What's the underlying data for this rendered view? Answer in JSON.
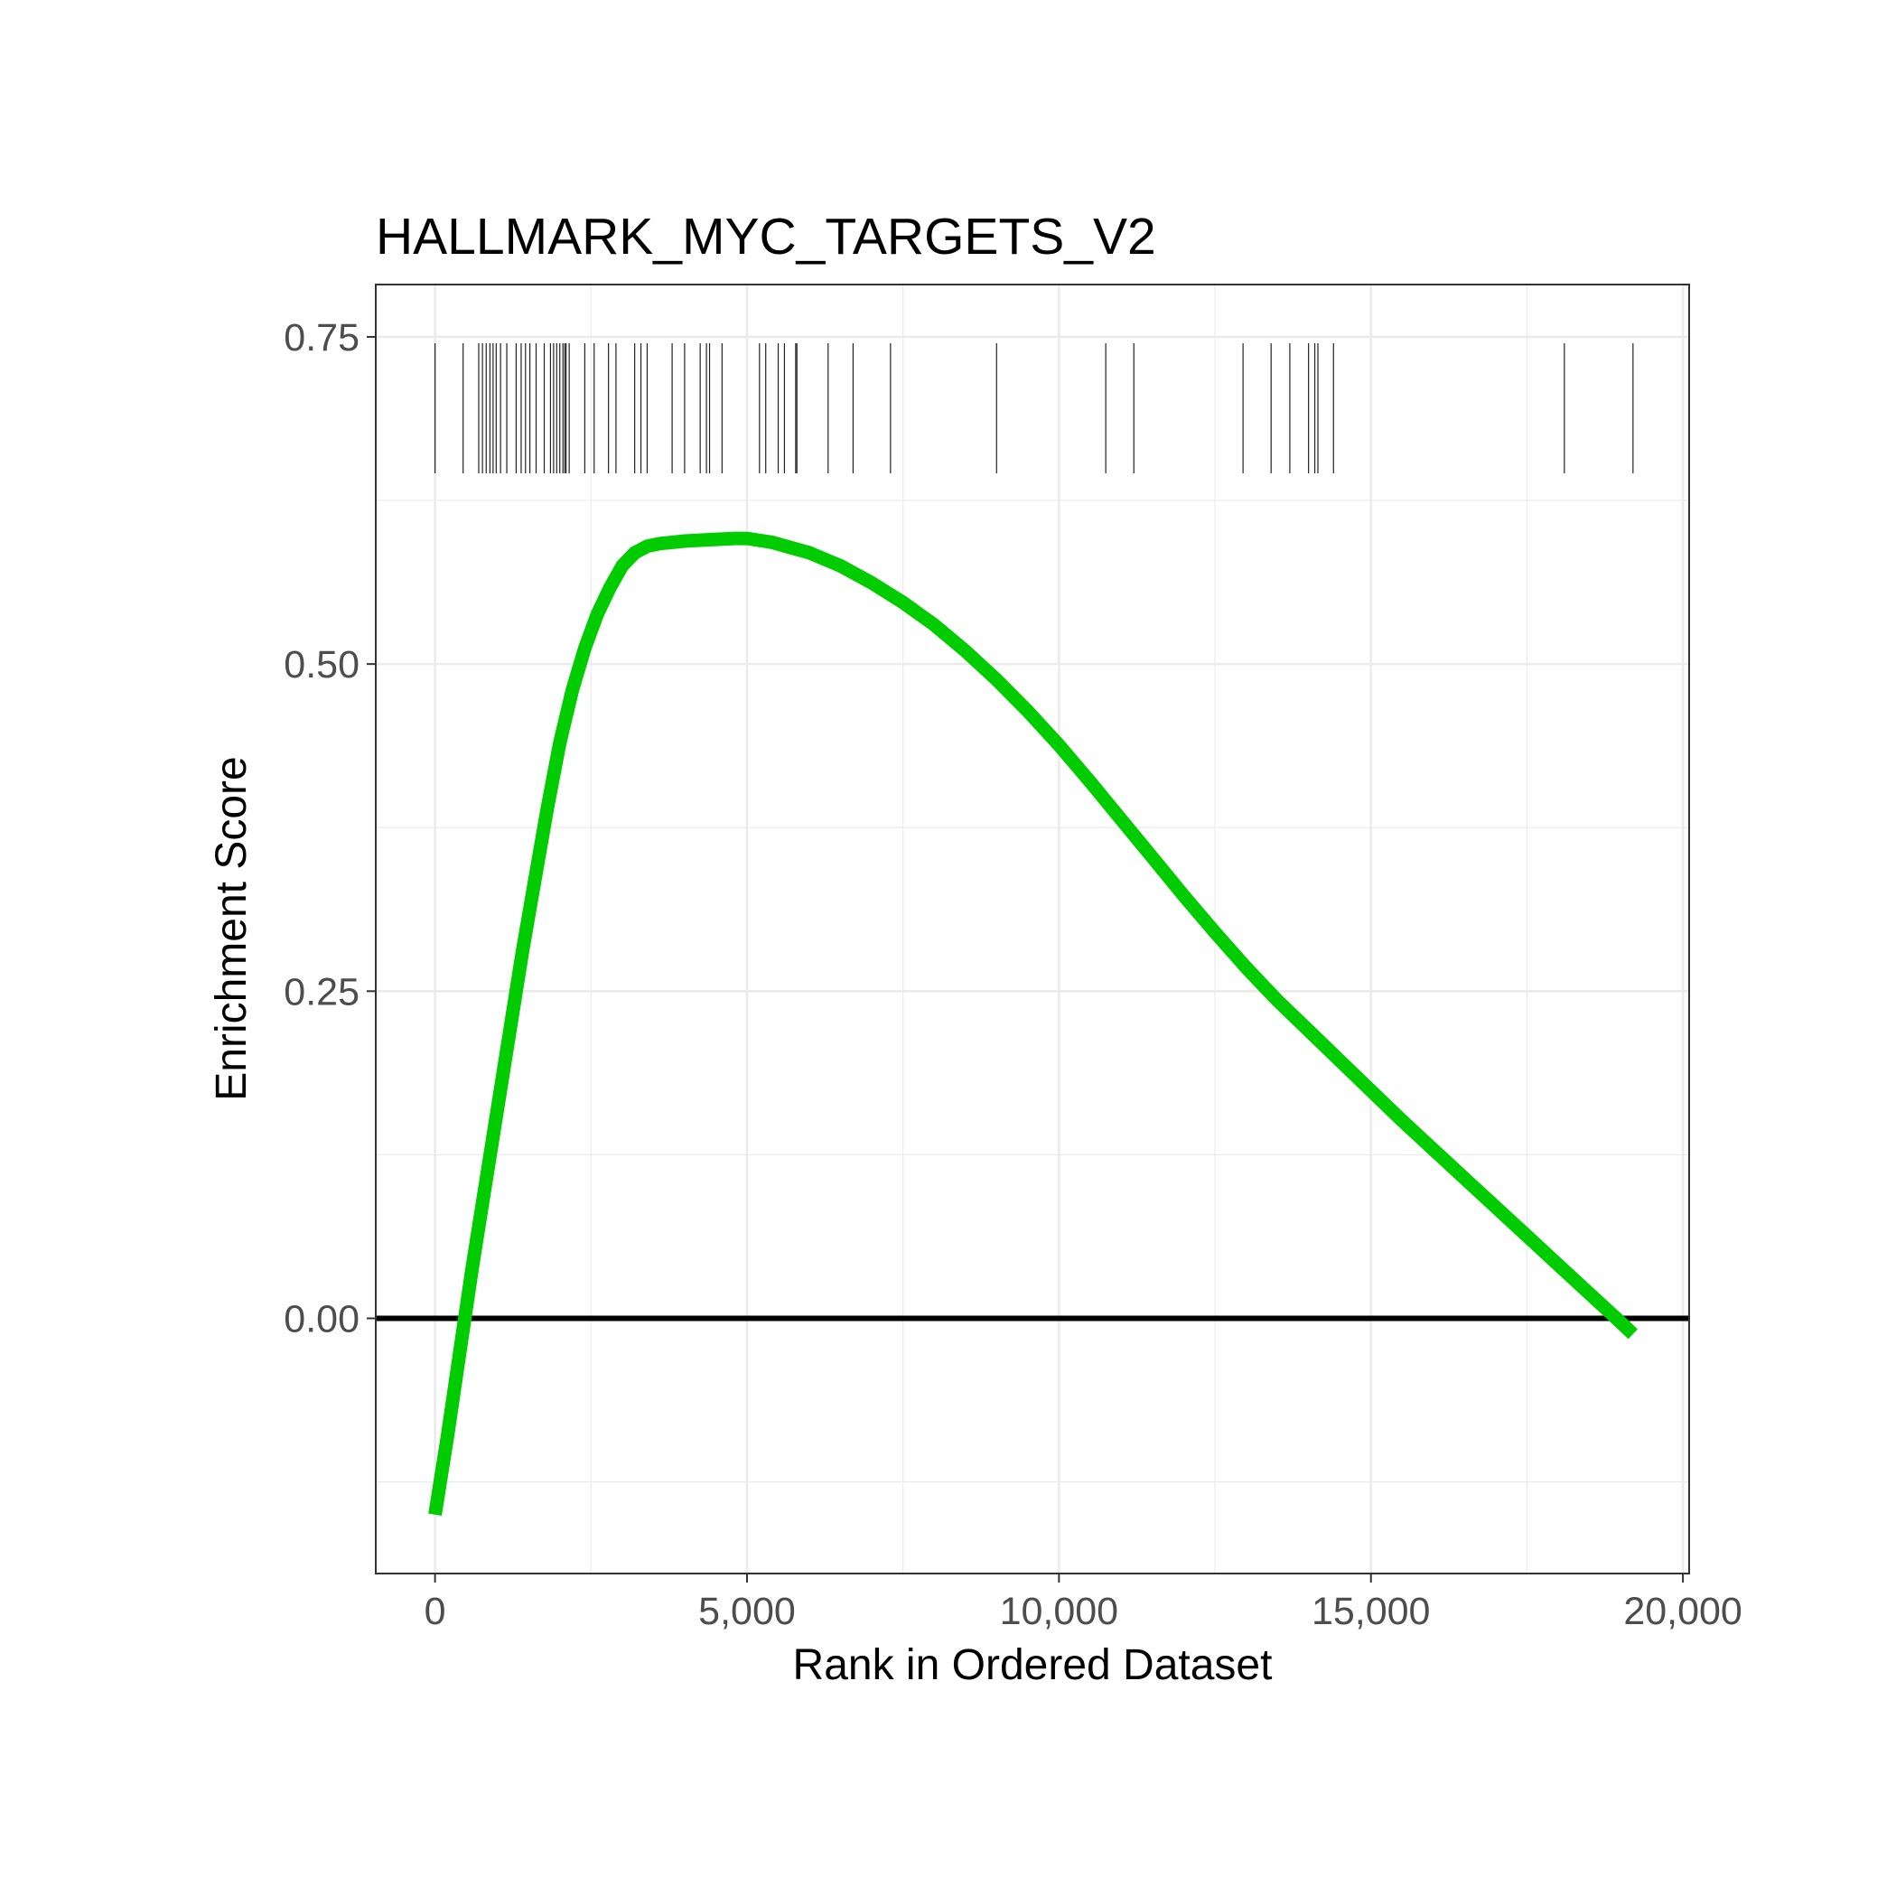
{
  "chart_data": {
    "type": "line",
    "title": "HALLMARK_MYC_TARGETS_V2",
    "xlabel": "Rank in Ordered Dataset",
    "ylabel": "Enrichment Score",
    "xlim": [
      -950,
      20100
    ],
    "ylim": [
      -0.195,
      0.79
    ],
    "x_ticks": [
      0,
      5000,
      10000,
      15000,
      20000
    ],
    "x_tick_labels": [
      "0",
      "5,000",
      "10,000",
      "15,000",
      "20,000"
    ],
    "y_ticks": [
      0,
      0.25,
      0.5,
      0.75
    ],
    "y_tick_labels": [
      "0.00",
      "0.25",
      "0.50",
      "0.75"
    ],
    "grid": true,
    "hline": 0,
    "line_color": "#00cc00",
    "series": [
      {
        "x": [
          0,
          200,
          400,
          600,
          800,
          1000,
          1200,
          1400,
          1600,
          1800,
          2000,
          2200,
          2400,
          2600,
          2800,
          3000,
          3200,
          3400,
          3600,
          3800,
          4000,
          4400,
          4800,
          5000,
          5400,
          6000,
          6500,
          7000,
          7500,
          8000,
          8500,
          9000,
          9500,
          10000,
          10500,
          11000,
          11500,
          12000,
          12500,
          13000,
          13500,
          14000,
          14500,
          15000,
          15500,
          16000,
          16500,
          17000,
          17500,
          18000,
          18500,
          19000,
          19200
        ],
        "values": [
          -0.15,
          -0.09,
          -0.025,
          0.04,
          0.1,
          0.16,
          0.22,
          0.28,
          0.335,
          0.39,
          0.44,
          0.48,
          0.512,
          0.538,
          0.558,
          0.575,
          0.585,
          0.59,
          0.592,
          0.593,
          0.594,
          0.595,
          0.596,
          0.596,
          0.593,
          0.585,
          0.575,
          0.562,
          0.547,
          0.53,
          0.51,
          0.488,
          0.464,
          0.438,
          0.41,
          0.381,
          0.352,
          0.323,
          0.295,
          0.268,
          0.243,
          0.22,
          0.197,
          0.174,
          0.151,
          0.129,
          0.107,
          0.085,
          0.063,
          0.041,
          0.019,
          -0.003,
          -0.012
        ]
      }
    ],
    "hit_ranks": [
      0,
      450,
      700,
      760,
      820,
      880,
      930,
      980,
      1050,
      1150,
      1300,
      1380,
      1450,
      1520,
      1620,
      1750,
      1850,
      1900,
      1950,
      2000,
      2050,
      2080,
      2100,
      2150,
      2400,
      2550,
      2780,
      2900,
      3200,
      3300,
      3400,
      3800,
      4000,
      4250,
      4350,
      4400,
      4600,
      5200,
      5300,
      5500,
      5600,
      5780,
      5800,
      6300,
      6700,
      7300,
      9000,
      10750,
      11200,
      12950,
      13400,
      13700,
      14000,
      14100,
      14150,
      14400,
      18100,
      19200
    ]
  }
}
